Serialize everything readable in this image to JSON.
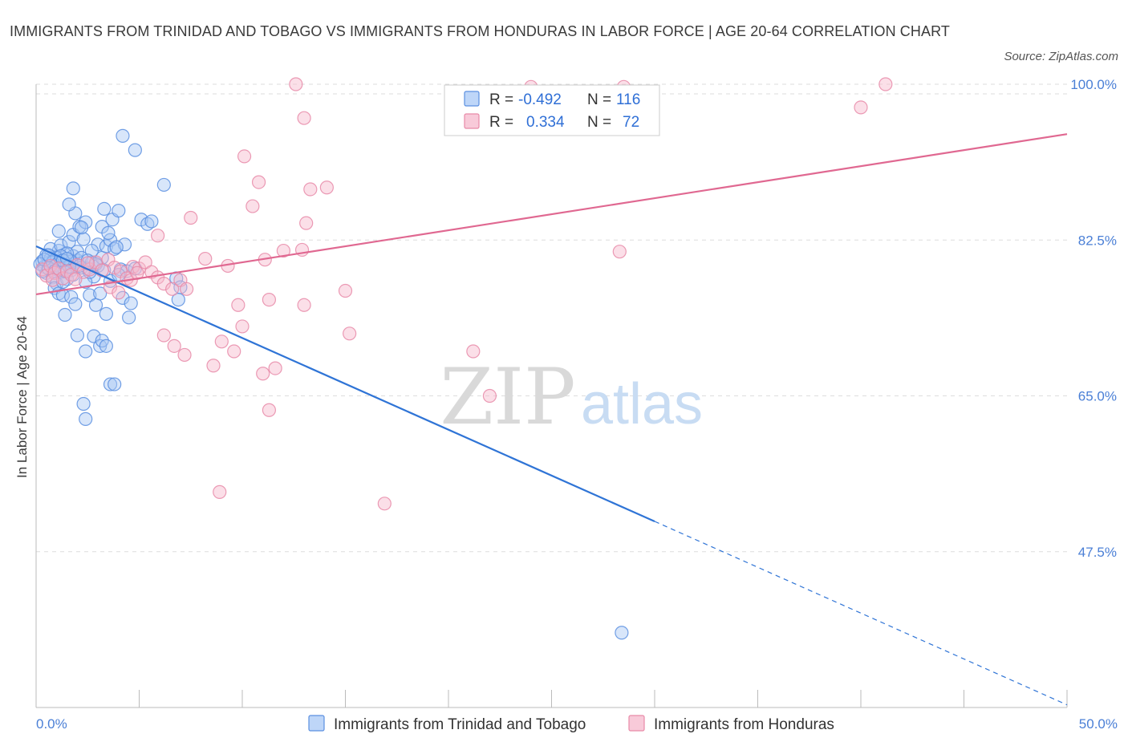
{
  "title": "IMMIGRANTS FROM TRINIDAD AND TOBAGO VS IMMIGRANTS FROM HONDURAS IN LABOR FORCE | AGE 20-64 CORRELATION CHART",
  "source": "Source: ZipAtlas.com",
  "watermark": {
    "zip": "ZIP",
    "atlas": "atlas"
  },
  "legend": {
    "rows": [
      {
        "r_label": "R =",
        "r_value": "-0.492",
        "n_label": "N =",
        "n_value": "116"
      },
      {
        "r_label": "R =",
        "r_value": "0.334",
        "n_label": "N =",
        "n_value": "72"
      }
    ]
  },
  "colors": {
    "blue_fill": "#a8c8f5",
    "blue_stroke": "#5b8fe0",
    "blue_line": "#2f74d6",
    "pink_fill": "#f6b8cc",
    "pink_stroke": "#e88aa8",
    "pink_line": "#e06891",
    "grid": "#dddddd",
    "tick_text": "#4a7fd6"
  },
  "chart_data": {
    "type": "scatter",
    "title": "IMMIGRANTS FROM TRINIDAD AND TOBAGO VS IMMIGRANTS FROM HONDURAS IN LABOR FORCE | AGE 20-64 CORRELATION CHART",
    "xlabel": "",
    "ylabel": "In Labor Force | Age 20-64",
    "xlim": [
      0,
      50
    ],
    "ylim": [
      30,
      100
    ],
    "x_tick_labels": [
      "0.0%",
      "50.0%"
    ],
    "y_ticks": [
      47.5,
      65.0,
      82.5,
      100.0
    ],
    "y_tick_labels": [
      "47.5%",
      "65.0%",
      "82.5%",
      "100.0%"
    ],
    "grid": true,
    "legend_position": "top-center",
    "series": [
      {
        "name": "Immigrants from Trinidad and Tobago",
        "color": "#5b8fe0",
        "r": -0.492,
        "n": 116,
        "trend": {
          "x": [
            0,
            30,
            50
          ],
          "y": [
            81.8,
            50.9,
            30.3
          ],
          "solid_until_x": 30
        },
        "points": [
          [
            0.3,
            80.1
          ],
          [
            0.4,
            79.5
          ],
          [
            0.5,
            80.8
          ],
          [
            0.6,
            79.9
          ],
          [
            0.7,
            80.4
          ],
          [
            0.8,
            79.2
          ],
          [
            0.9,
            80.6
          ],
          [
            1.0,
            79.7
          ],
          [
            1.1,
            81.3
          ],
          [
            1.2,
            80.0
          ],
          [
            1.3,
            79.4
          ],
          [
            1.4,
            80.9
          ],
          [
            1.5,
            79.8
          ],
          [
            1.6,
            80.3
          ],
          [
            1.7,
            79.1
          ],
          [
            1.8,
            80.7
          ],
          [
            1.9,
            79.6
          ],
          [
            2.0,
            80.2
          ],
          [
            0.5,
            78.8
          ],
          [
            0.8,
            78.3
          ],
          [
            1.0,
            77.6
          ],
          [
            1.2,
            78.9
          ],
          [
            1.5,
            78.1
          ],
          [
            1.8,
            78.6
          ],
          [
            0.9,
            77.1
          ],
          [
            1.1,
            76.5
          ],
          [
            1.3,
            77.8
          ],
          [
            0.7,
            81.5
          ],
          [
            1.2,
            81.9
          ],
          [
            1.6,
            82.3
          ],
          [
            2.0,
            81.2
          ],
          [
            2.2,
            80.5
          ],
          [
            1.1,
            83.5
          ],
          [
            1.8,
            83.1
          ],
          [
            2.1,
            84.0
          ],
          [
            2.4,
            84.5
          ],
          [
            2.5,
            79.3
          ],
          [
            2.7,
            80.0
          ],
          [
            2.8,
            78.4
          ],
          [
            3.0,
            79.6
          ],
          [
            3.2,
            80.5
          ],
          [
            3.0,
            82.0
          ],
          [
            3.4,
            81.8
          ],
          [
            3.6,
            82.5
          ],
          [
            3.8,
            81.5
          ],
          [
            3.2,
            84.0
          ],
          [
            3.5,
            83.3
          ],
          [
            3.7,
            84.8
          ],
          [
            4.0,
            85.8
          ],
          [
            3.3,
            86.0
          ],
          [
            1.9,
            85.5
          ],
          [
            1.6,
            86.5
          ],
          [
            1.8,
            88.3
          ],
          [
            4.3,
            82.0
          ],
          [
            4.1,
            79.2
          ],
          [
            4.4,
            79.0
          ],
          [
            5.1,
            84.8
          ],
          [
            5.4,
            84.3
          ],
          [
            5.6,
            84.6
          ],
          [
            4.2,
            94.2
          ],
          [
            4.8,
            92.6
          ],
          [
            6.2,
            88.7
          ],
          [
            2.4,
            77.8
          ],
          [
            2.6,
            76.3
          ],
          [
            2.9,
            75.2
          ],
          [
            3.4,
            74.2
          ],
          [
            3.1,
            76.5
          ],
          [
            3.6,
            77.9
          ],
          [
            4.2,
            76.0
          ],
          [
            4.6,
            75.4
          ],
          [
            4.5,
            73.8
          ],
          [
            1.3,
            76.3
          ],
          [
            1.7,
            76.1
          ],
          [
            1.4,
            74.1
          ],
          [
            1.9,
            75.3
          ],
          [
            2.0,
            71.8
          ],
          [
            2.4,
            70.0
          ],
          [
            2.8,
            71.7
          ],
          [
            3.1,
            70.6
          ],
          [
            3.2,
            71.2
          ],
          [
            3.4,
            70.6
          ],
          [
            3.6,
            66.3
          ],
          [
            3.8,
            66.3
          ],
          [
            2.3,
            64.1
          ],
          [
            2.4,
            62.4
          ],
          [
            6.8,
            78.2
          ],
          [
            6.9,
            75.8
          ],
          [
            7.0,
            77.2
          ],
          [
            0.2,
            79.8
          ],
          [
            0.3,
            79.0
          ],
          [
            0.6,
            79.3
          ],
          [
            1.0,
            80.5
          ],
          [
            1.4,
            79.0
          ],
          [
            1.7,
            80.1
          ],
          [
            2.2,
            79.4
          ],
          [
            2.6,
            78.9
          ],
          [
            2.9,
            79.8
          ],
          [
            0.4,
            80.3
          ],
          [
            0.8,
            80.0
          ],
          [
            1.5,
            81.0
          ],
          [
            2.3,
            82.6
          ],
          [
            2.7,
            81.3
          ],
          [
            4.8,
            79.3
          ],
          [
            4.0,
            78.6
          ],
          [
            3.3,
            79.1
          ],
          [
            1.2,
            80.7
          ],
          [
            0.6,
            80.8
          ],
          [
            2.1,
            79.6
          ],
          [
            2.5,
            80.2
          ],
          [
            1.6,
            79.5
          ],
          [
            0.9,
            79.0
          ],
          [
            1.3,
            80.2
          ],
          [
            3.9,
            81.7
          ],
          [
            28.4,
            38.4
          ],
          [
            2.2,
            83.9
          ],
          [
            1.5,
            80.4
          ]
        ]
      },
      {
        "name": "Immigrants from Honduras",
        "color": "#e88aa8",
        "r": 0.334,
        "n": 72,
        "trend": {
          "x": [
            0,
            50
          ],
          "y": [
            76.4,
            94.4
          ]
        },
        "points": [
          [
            0.3,
            79.2
          ],
          [
            0.5,
            78.5
          ],
          [
            0.7,
            79.6
          ],
          [
            0.9,
            78.8
          ],
          [
            1.1,
            79.3
          ],
          [
            1.3,
            78.2
          ],
          [
            1.5,
            79.0
          ],
          [
            1.7,
            78.6
          ],
          [
            2.0,
            79.7
          ],
          [
            2.3,
            78.9
          ],
          [
            2.6,
            79.2
          ],
          [
            2.9,
            80.0
          ],
          [
            3.2,
            79.1
          ],
          [
            3.5,
            80.3
          ],
          [
            3.8,
            79.4
          ],
          [
            4.1,
            79.0
          ],
          [
            4.4,
            78.2
          ],
          [
            4.7,
            79.5
          ],
          [
            5.0,
            79.3
          ],
          [
            5.3,
            80.0
          ],
          [
            5.6,
            78.9
          ],
          [
            5.9,
            78.3
          ],
          [
            6.2,
            77.6
          ],
          [
            6.6,
            77.0
          ],
          [
            7.0,
            78.0
          ],
          [
            7.3,
            77.0
          ],
          [
            3.6,
            77.2
          ],
          [
            4.0,
            76.6
          ],
          [
            4.6,
            78.0
          ],
          [
            5.9,
            83.0
          ],
          [
            7.5,
            85.0
          ],
          [
            8.2,
            80.4
          ],
          [
            9.3,
            79.6
          ],
          [
            9.0,
            71.1
          ],
          [
            8.6,
            68.4
          ],
          [
            7.2,
            69.6
          ],
          [
            6.7,
            70.6
          ],
          [
            6.2,
            71.8
          ],
          [
            9.6,
            70.0
          ],
          [
            10.0,
            72.8
          ],
          [
            9.8,
            75.2
          ],
          [
            10.5,
            86.3
          ],
          [
            10.1,
            91.9
          ],
          [
            10.8,
            89.0
          ],
          [
            11.0,
            67.5
          ],
          [
            11.3,
            75.8
          ],
          [
            11.3,
            63.4
          ],
          [
            11.6,
            68.1
          ],
          [
            11.1,
            80.3
          ],
          [
            12.0,
            81.3
          ],
          [
            12.9,
            81.4
          ],
          [
            13.0,
            75.2
          ],
          [
            13.1,
            84.4
          ],
          [
            13.3,
            88.2
          ],
          [
            13.0,
            96.2
          ],
          [
            12.6,
            100.0
          ],
          [
            14.1,
            88.4
          ],
          [
            15.2,
            72.0
          ],
          [
            16.9,
            52.9
          ],
          [
            15.0,
            76.8
          ],
          [
            21.2,
            70.0
          ],
          [
            22.0,
            65.0
          ],
          [
            24.0,
            99.7
          ],
          [
            28.3,
            81.2
          ],
          [
            28.5,
            99.7
          ],
          [
            40.0,
            97.4
          ],
          [
            41.2,
            100.0
          ],
          [
            8.9,
            54.2
          ],
          [
            0.8,
            78.0
          ],
          [
            1.9,
            78.1
          ],
          [
            2.5,
            79.9
          ],
          [
            4.9,
            78.8
          ]
        ]
      }
    ]
  },
  "bottom_legend": [
    {
      "label": "Immigrants from Trinidad and Tobago"
    },
    {
      "label": "Immigrants from Honduras"
    }
  ]
}
